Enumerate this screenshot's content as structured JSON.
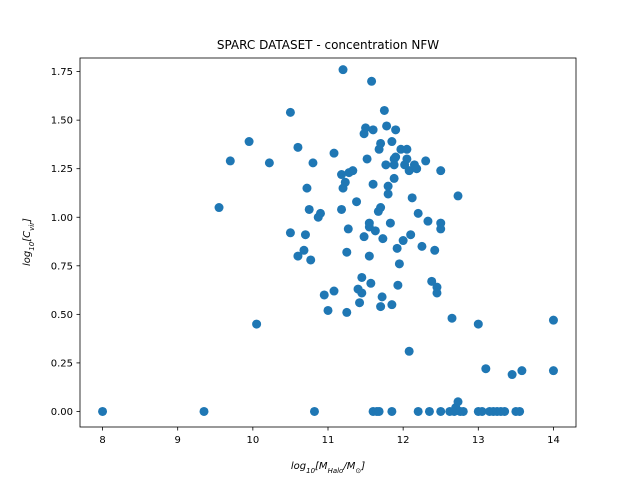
{
  "chart_data": {
    "type": "scatter",
    "title": "SPARC DATASET - concentration NFW",
    "xlabel": "log10[MHalo/M⊙]",
    "ylabel": "log10[Cvir]",
    "xlim": [
      7.7,
      14.3
    ],
    "ylim": [
      -0.08,
      1.82
    ],
    "xticks": [
      8,
      9,
      10,
      11,
      12,
      13,
      14
    ],
    "yticks": [
      0.0,
      0.25,
      0.5,
      0.75,
      1.0,
      1.25,
      1.5,
      1.75
    ],
    "xtick_labels": [
      "8",
      "9",
      "10",
      "11",
      "12",
      "13",
      "14"
    ],
    "ytick_labels": [
      "0.00",
      "0.25",
      "0.50",
      "0.75",
      "1.00",
      "1.25",
      "1.50",
      "1.75"
    ],
    "grid": false,
    "marker_color": "#1f77b4",
    "points": [
      [
        8.0,
        0.0
      ],
      [
        9.35,
        0.0
      ],
      [
        9.55,
        1.05
      ],
      [
        9.7,
        1.29
      ],
      [
        9.95,
        1.39
      ],
      [
        10.05,
        0.45
      ],
      [
        10.22,
        1.28
      ],
      [
        10.5,
        1.54
      ],
      [
        10.5,
        0.92
      ],
      [
        10.6,
        1.36
      ],
      [
        10.6,
        0.8
      ],
      [
        10.68,
        0.83
      ],
      [
        10.7,
        0.91
      ],
      [
        10.72,
        1.15
      ],
      [
        10.75,
        1.04
      ],
      [
        10.77,
        0.78
      ],
      [
        10.8,
        1.28
      ],
      [
        10.82,
        0.0
      ],
      [
        10.87,
        1.0
      ],
      [
        10.9,
        1.02
      ],
      [
        10.95,
        0.6
      ],
      [
        11.0,
        0.52
      ],
      [
        11.08,
        1.33
      ],
      [
        11.08,
        0.62
      ],
      [
        11.18,
        1.22
      ],
      [
        11.18,
        1.04
      ],
      [
        11.2,
        1.76
      ],
      [
        11.2,
        1.15
      ],
      [
        11.23,
        1.18
      ],
      [
        11.25,
        0.51
      ],
      [
        11.25,
        0.82
      ],
      [
        11.27,
        0.94
      ],
      [
        11.28,
        1.23
      ],
      [
        11.33,
        1.24
      ],
      [
        11.38,
        1.08
      ],
      [
        11.4,
        0.63
      ],
      [
        11.42,
        0.56
      ],
      [
        11.45,
        0.69
      ],
      [
        11.45,
        0.61
      ],
      [
        11.48,
        0.9
      ],
      [
        11.48,
        1.43
      ],
      [
        11.5,
        1.46
      ],
      [
        11.52,
        1.3
      ],
      [
        11.55,
        0.95
      ],
      [
        11.55,
        0.97
      ],
      [
        11.55,
        0.8
      ],
      [
        11.57,
        0.66
      ],
      [
        11.58,
        1.7
      ],
      [
        11.6,
        1.45
      ],
      [
        11.6,
        1.17
      ],
      [
        11.6,
        0.0
      ],
      [
        11.63,
        0.93
      ],
      [
        11.65,
        0.0
      ],
      [
        11.67,
        1.03
      ],
      [
        11.68,
        0.0
      ],
      [
        11.68,
        1.35
      ],
      [
        11.7,
        1.05
      ],
      [
        11.7,
        1.38
      ],
      [
        11.7,
        0.54
      ],
      [
        11.72,
        0.59
      ],
      [
        11.73,
        0.89
      ],
      [
        11.75,
        1.55
      ],
      [
        11.77,
        1.27
      ],
      [
        11.78,
        1.47
      ],
      [
        11.8,
        1.12
      ],
      [
        11.8,
        1.16
      ],
      [
        11.83,
        0.97
      ],
      [
        11.85,
        0.55
      ],
      [
        11.85,
        0.0
      ],
      [
        11.85,
        1.39
      ],
      [
        11.88,
        1.27
      ],
      [
        11.88,
        1.3
      ],
      [
        11.88,
        1.2
      ],
      [
        11.9,
        1.31
      ],
      [
        11.9,
        1.45
      ],
      [
        11.92,
        0.84
      ],
      [
        11.93,
        0.65
      ],
      [
        11.95,
        0.76
      ],
      [
        11.97,
        1.35
      ],
      [
        12.0,
        0.88
      ],
      [
        12.02,
        1.27
      ],
      [
        12.05,
        1.35
      ],
      [
        12.05,
        1.3
      ],
      [
        12.08,
        1.24
      ],
      [
        12.08,
        0.31
      ],
      [
        12.1,
        0.91
      ],
      [
        12.12,
        1.1
      ],
      [
        12.15,
        1.27
      ],
      [
        12.18,
        1.25
      ],
      [
        12.2,
        1.02
      ],
      [
        12.2,
        0.0
      ],
      [
        12.25,
        0.85
      ],
      [
        12.3,
        1.29
      ],
      [
        12.33,
        0.98
      ],
      [
        12.35,
        0.0
      ],
      [
        12.38,
        0.67
      ],
      [
        12.42,
        0.83
      ],
      [
        12.45,
        0.64
      ],
      [
        12.45,
        0.61
      ],
      [
        12.5,
        0.0
      ],
      [
        12.5,
        1.24
      ],
      [
        12.5,
        0.94
      ],
      [
        12.5,
        0.97
      ],
      [
        12.62,
        0.0
      ],
      [
        12.65,
        0.48
      ],
      [
        12.68,
        0.0
      ],
      [
        12.7,
        0.02
      ],
      [
        12.73,
        0.05
      ],
      [
        12.73,
        1.11
      ],
      [
        12.76,
        0.0
      ],
      [
        12.8,
        0.0
      ],
      [
        13.0,
        0.45
      ],
      [
        13.0,
        0.0
      ],
      [
        13.05,
        0.0
      ],
      [
        13.1,
        0.22
      ],
      [
        13.15,
        0.0
      ],
      [
        13.2,
        0.0
      ],
      [
        13.25,
        0.0
      ],
      [
        13.3,
        0.0
      ],
      [
        13.35,
        0.0
      ],
      [
        13.45,
        0.19
      ],
      [
        13.5,
        0.0
      ],
      [
        13.55,
        0.0
      ],
      [
        13.58,
        0.21
      ],
      [
        14.0,
        0.47
      ],
      [
        14.0,
        0.21
      ]
    ]
  }
}
